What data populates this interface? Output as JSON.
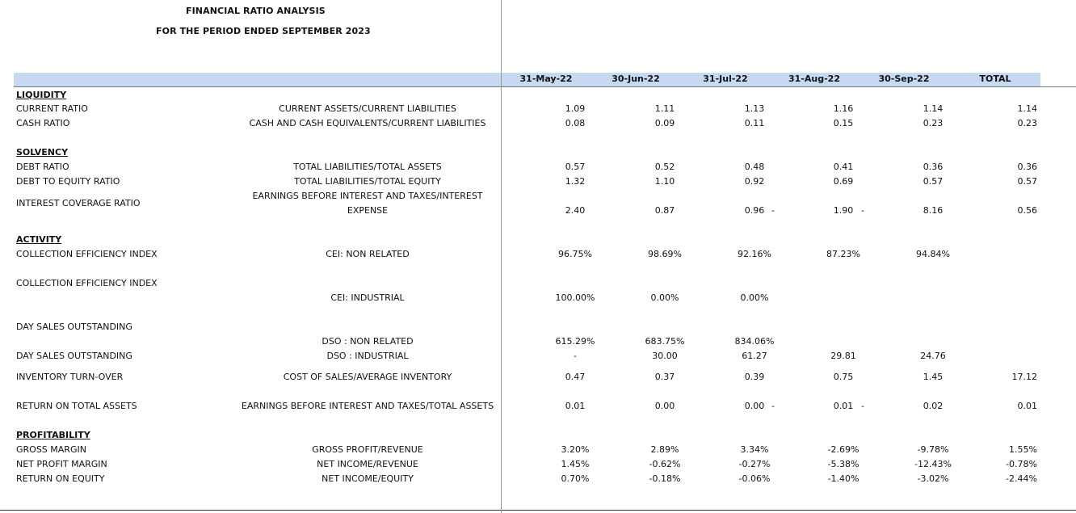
{
  "header": {
    "title": "FINANCIAL RATIO ANALYSIS",
    "subtitle": "FOR THE PERIOD ENDED SEPTEMBER 2023"
  },
  "columns": [
    "31-May-22",
    "30-Jun-22",
    "31-Jul-22",
    "31-Aug-22",
    "30-Sep-22",
    "TOTAL"
  ],
  "sections": {
    "liquidity": "LIQUIDITY",
    "solvency": "SOLVENCY",
    "activity": "ACTIVITY",
    "profitability": "PROFITABILITY"
  },
  "rows": {
    "current_ratio": {
      "label": "CURRENT RATIO",
      "formula": "CURRENT ASSETS/CURRENT LIABILITIES",
      "v": [
        "1.09",
        "1.11",
        "1.13",
        "1.16",
        "1.14"
      ],
      "total": "1.14"
    },
    "cash_ratio": {
      "label": "CASH RATIO",
      "formula": "CASH AND CASH EQUIVALENTS/CURRENT LIABILITIES",
      "v": [
        "0.08",
        "0.09",
        "0.11",
        "0.15",
        "0.23"
      ],
      "total": "0.23"
    },
    "debt_ratio": {
      "label": "DEBT RATIO",
      "formula": "TOTAL LIABILITIES/TOTAL ASSETS",
      "v": [
        "0.57",
        "0.52",
        "0.48",
        "0.41",
        "0.36"
      ],
      "total": "0.36"
    },
    "debt_equity": {
      "label": "DEBT TO EQUITY RATIO",
      "formula": "TOTAL LIABILITIES/TOTAL EQUITY",
      "v": [
        "1.32",
        "1.10",
        "0.92",
        "0.69",
        "0.57"
      ],
      "total": "0.57"
    },
    "interest_cov": {
      "label": "INTEREST COVERAGE RATIO",
      "formula1": "EARNINGS BEFORE INTEREST AND TAXES/INTEREST",
      "formula2": "EXPENSE",
      "v": [
        "2.40",
        "0.87",
        "0.96",
        "1.90",
        "8.16"
      ],
      "total": "0.56"
    },
    "cei_nonrel": {
      "label": "COLLECTION EFFICIENCY INDEX",
      "formula": "CEI: NON RELATED",
      "v": [
        "96.75%",
        "98.69%",
        "92.16%",
        "87.23%",
        "94.84%"
      ]
    },
    "cei_ind": {
      "label": "COLLECTION EFFICIENCY INDEX",
      "formula": "CEI: INDUSTRIAL",
      "v": [
        "100.00%",
        "0.00%",
        "0.00%"
      ]
    },
    "dso_nonrel": {
      "label": "DAY SALES OUTSTANDING",
      "formula": "DSO : NON RELATED",
      "v": [
        "615.29%",
        "683.75%",
        "834.06%"
      ]
    },
    "dso_ind": {
      "label": "DAY SALES OUTSTANDING",
      "formula": "DSO : INDUSTRIAL",
      "v": [
        "-",
        "30.00",
        "61.27",
        "29.81",
        "24.76"
      ]
    },
    "inventory": {
      "label": "INVENTORY TURN-OVER",
      "formula": "COST OF SALES/AVERAGE INVENTORY",
      "v": [
        "0.47",
        "0.37",
        "0.39",
        "0.75",
        "1.45"
      ],
      "total": "17.12"
    },
    "rota": {
      "label": "RETURN ON TOTAL ASSETS",
      "formula": "EARNINGS BEFORE INTEREST AND TAXES/TOTAL ASSETS",
      "v": [
        "0.01",
        "0.00",
        "0.00",
        "0.01",
        "0.02"
      ],
      "total": "0.01"
    },
    "gross_margin": {
      "label": "GROSS MARGIN",
      "formula": "GROSS PROFIT/REVENUE",
      "v": [
        "3.20%",
        "2.89%",
        "3.34%",
        "-2.69%",
        "-9.78%"
      ],
      "total": "1.55%"
    },
    "net_margin": {
      "label": "NET PROFIT MARGIN",
      "formula": "NET INCOME/REVENUE",
      "v": [
        "1.45%",
        "-0.62%",
        "-0.27%",
        "-5.38%",
        "-12.43%"
      ],
      "total": "-0.78%"
    },
    "roe": {
      "label": "RETURN ON EQUITY",
      "formula": "NET INCOME/EQUITY",
      "v": [
        "0.70%",
        "-0.18%",
        "-0.06%",
        "-1.40%",
        "-3.02%"
      ],
      "total": "-2.44%"
    }
  },
  "neg_marker": "-"
}
